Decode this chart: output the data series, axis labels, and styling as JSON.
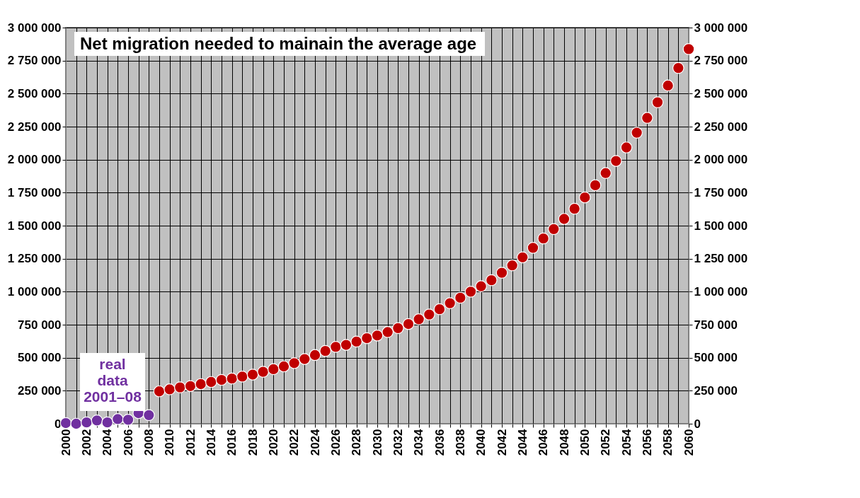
{
  "chart_data": {
    "type": "scatter",
    "title": "Net migration needed to mainain the average age",
    "annotations": [
      "real\ndata\n2001–08"
    ],
    "series": [
      {
        "color": "#7030a0",
        "x": [
          2000,
          2001,
          2002,
          2003,
          2004,
          2005,
          2006,
          2007,
          2008
        ],
        "values": [
          5000,
          0,
          10000,
          25000,
          10000,
          35000,
          30000,
          80000,
          65000
        ]
      },
      {
        "color": "#c00000",
        "x": [
          2009,
          2010,
          2011,
          2012,
          2013,
          2014,
          2015,
          2016,
          2017,
          2018,
          2019,
          2020,
          2021,
          2022,
          2023,
          2024,
          2025,
          2026,
          2027,
          2028,
          2029,
          2030,
          2031,
          2032,
          2033,
          2034,
          2035,
          2036,
          2037,
          2038,
          2039,
          2040,
          2041,
          2042,
          2043,
          2044,
          2045,
          2046,
          2047,
          2048,
          2049,
          2050,
          2051,
          2052,
          2053,
          2054,
          2055,
          2056,
          2057,
          2058,
          2059,
          2060
        ],
        "values": [
          245000,
          260000,
          275000,
          285000,
          300000,
          316000,
          332000,
          342000,
          357000,
          372000,
          393000,
          413000,
          434000,
          459000,
          490000,
          520000,
          551000,
          582000,
          597000,
          622000,
          648000,
          668000,
          694000,
          724000,
          755000,
          791000,
          827000,
          867000,
          913000,
          954000,
          1000000,
          1041000,
          1087000,
          1143000,
          1199000,
          1260000,
          1332000,
          1403000,
          1474000,
          1551000,
          1628000,
          1714000,
          1806000,
          1898000,
          1990000,
          2092000,
          2204000,
          2316000,
          2434000,
          2561000,
          2694000,
          2837000
        ]
      }
    ],
    "xlim": [
      2000,
      2060
    ],
    "xticks": [
      2000,
      {
        "value": 2001,
        "label": null
      },
      2002,
      {
        "value": 2003,
        "label": null
      },
      2004,
      {
        "value": 2005,
        "label": null
      },
      2006,
      {
        "value": 2007,
        "label": null
      },
      2008,
      {
        "value": 2009,
        "label": null
      },
      2010,
      {
        "value": 2011,
        "label": null
      },
      2012,
      {
        "value": 2013,
        "label": null
      },
      2014,
      {
        "value": 2015,
        "label": null
      },
      2016,
      {
        "value": 2017,
        "label": null
      },
      2018,
      {
        "value": 2019,
        "label": null
      },
      2020,
      {
        "value": 2021,
        "label": null
      },
      2022,
      {
        "value": 2023,
        "label": null
      },
      2024,
      {
        "value": 2025,
        "label": null
      },
      2026,
      {
        "value": 2027,
        "label": null
      },
      2028,
      {
        "value": 2029,
        "label": null
      },
      2030,
      {
        "value": 2031,
        "label": null
      },
      2032,
      {
        "value": 2033,
        "label": null
      },
      2034,
      {
        "value": 2035,
        "label": null
      },
      2036,
      {
        "value": 2037,
        "label": null
      },
      2038,
      {
        "value": 2039,
        "label": null
      },
      2040,
      {
        "value": 2041,
        "label": null
      },
      2042,
      {
        "value": 2043,
        "label": null
      },
      2044,
      {
        "value": 2045,
        "label": null
      },
      2046,
      {
        "value": 2047,
        "label": null
      },
      2048,
      {
        "value": 2049,
        "label": null
      },
      2050,
      {
        "value": 2051,
        "label": null
      },
      2052,
      {
        "value": 2053,
        "label": null
      },
      2054,
      {
        "value": 2055,
        "label": null
      },
      2056,
      {
        "value": 2057,
        "label": null
      },
      2058,
      {
        "value": 2059,
        "label": null
      },
      2060
    ],
    "ylim": [
      0,
      3000000
    ],
    "yticks": [
      0,
      {
        "value": 250000,
        "label": "250 000"
      },
      {
        "value": 500000,
        "label": "500 000"
      },
      {
        "value": 750000,
        "label": "750 000"
      },
      {
        "value": 1000000,
        "label": "1 000 000"
      },
      {
        "value": 1250000,
        "label": "1 250 000"
      },
      {
        "value": 1500000,
        "label": "1 500 000"
      },
      {
        "value": 1750000,
        "label": "1 750 000"
      },
      {
        "value": 2000000,
        "label": "2 000 000"
      },
      {
        "value": 2250000,
        "label": "2 250 000"
      },
      {
        "value": 2500000,
        "label": "2 500 000"
      },
      {
        "value": 2750000,
        "label": "2 750 000"
      },
      {
        "value": 3000000,
        "label": "3 000 000"
      }
    ],
    "y2lim": [
      0,
      3000000
    ],
    "y2ticks": [
      0,
      {
        "value": 250000,
        "label": "250 000"
      },
      {
        "value": 500000,
        "label": "500 000"
      },
      {
        "value": 750000,
        "label": "750 000"
      },
      {
        "value": 1000000,
        "label": "1 000 000"
      },
      {
        "value": 1250000,
        "label": "1 250 000"
      },
      {
        "value": 1500000,
        "label": "1 500 000"
      },
      {
        "value": 1750000,
        "label": "1 750 000"
      },
      {
        "value": 2000000,
        "label": "2 000 000"
      },
      {
        "value": 2250000,
        "label": "2 250 000"
      },
      {
        "value": 2500000,
        "label": "2 500 000"
      },
      {
        "value": 2750000,
        "label": "2 750 000"
      },
      {
        "value": 3000000,
        "label": "3 000 000"
      }
    ],
    "grid": true,
    "legend": false,
    "marker": "circle"
  }
}
